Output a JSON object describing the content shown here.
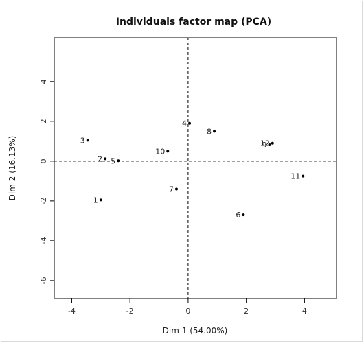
{
  "chart_data": {
    "type": "scatter",
    "title": "Individuals factor map (PCA)",
    "xlabel": "Dim 1 (54.00%)",
    "ylabel": "Dim 2 (16.13%)",
    "xlim": [
      -4.6,
      5.1
    ],
    "ylim": [
      -6.9,
      6.2
    ],
    "xticks": [
      -4,
      -2,
      0,
      2,
      4
    ],
    "yticks": [
      4,
      2,
      0,
      -2,
      -4,
      -6
    ],
    "xtick_labels": [
      "-4",
      "-2",
      "0",
      "2",
      "4"
    ],
    "ytick_labels": [
      "4",
      "2",
      "0",
      "-2",
      "-4",
      "-6"
    ],
    "grid": false,
    "reference_lines": {
      "x": 0,
      "y": 0,
      "style": "dashed"
    },
    "points": [
      {
        "label": "1",
        "x": -3.0,
        "y": -1.95
      },
      {
        "label": "2",
        "x": -2.85,
        "y": 0.12
      },
      {
        "label": "3",
        "x": -3.45,
        "y": 1.05
      },
      {
        "label": "4",
        "x": 0.05,
        "y": 1.9
      },
      {
        "label": "5",
        "x": -2.4,
        "y": 0.02
      },
      {
        "label": "6",
        "x": 1.9,
        "y": -2.7
      },
      {
        "label": "7",
        "x": -0.4,
        "y": -1.4
      },
      {
        "label": "8",
        "x": 0.9,
        "y": 1.5
      },
      {
        "label": "9",
        "x": 2.8,
        "y": 0.82
      },
      {
        "label": "10",
        "x": -0.7,
        "y": 0.5
      },
      {
        "label": "11",
        "x": 3.95,
        "y": -0.75
      },
      {
        "label": "12",
        "x": 2.9,
        "y": 0.9
      }
    ]
  }
}
